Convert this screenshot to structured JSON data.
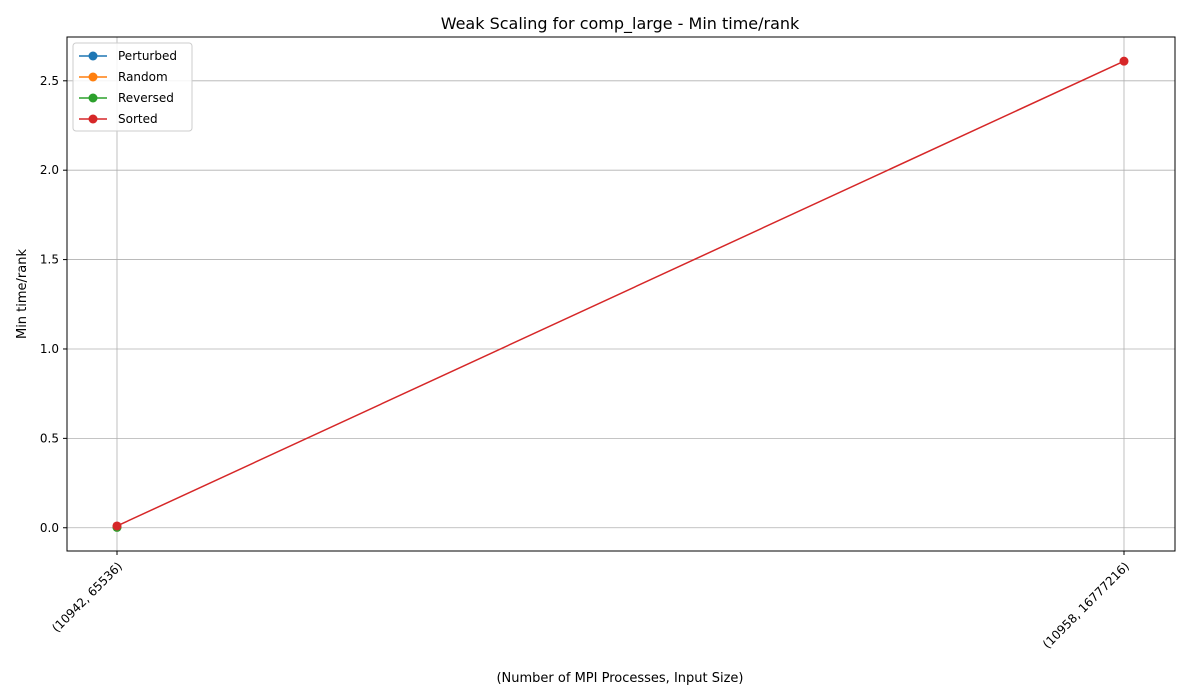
{
  "chart_data": {
    "type": "line",
    "title": "Weak Scaling for comp_large - Min time/rank",
    "xlabel": "(Number of MPI Processes, Input Size)",
    "ylabel": "Min time/rank",
    "categories": [
      "(10942, 65536)",
      "(10958, 16777216)"
    ],
    "ylim": [
      -0.13,
      2.745
    ],
    "yticks": [
      0.0,
      0.5,
      1.0,
      1.5,
      2.0,
      2.5
    ],
    "ytick_labels": [
      "0.0",
      "0.5",
      "1.0",
      "1.5",
      "2.0",
      "2.5"
    ],
    "grid": true,
    "legend_position": "top-left",
    "series": [
      {
        "name": "Perturbed",
        "color": "#1f77b4",
        "values": [
          0.005,
          null
        ]
      },
      {
        "name": "Random",
        "color": "#ff7f0e",
        "values": [
          0.005,
          null
        ]
      },
      {
        "name": "Reversed",
        "color": "#2ca02c",
        "values": [
          0.002,
          null
        ]
      },
      {
        "name": "Sorted",
        "color": "#d62728",
        "values": [
          0.01,
          2.61
        ]
      }
    ]
  }
}
